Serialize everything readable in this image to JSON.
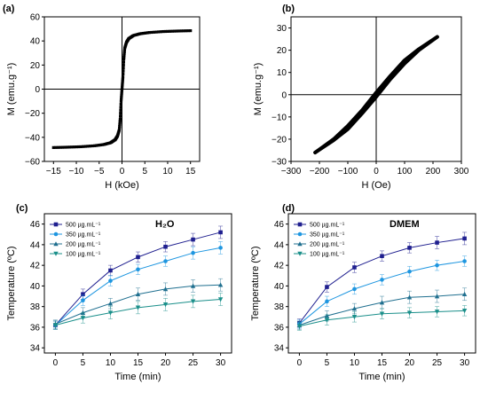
{
  "panels": {
    "a": {
      "label": "(a)"
    },
    "b": {
      "label": "(b)"
    },
    "c": {
      "label": "(c)"
    },
    "d": {
      "label": "(d)"
    }
  },
  "colors": {
    "500": "#1f1f8f",
    "350": "#1e96e0",
    "200": "#1f6f8f",
    "100": "#1a8f8a"
  },
  "chart_data": [
    {
      "id": "a",
      "type": "line",
      "xlabel": "H (kOe)",
      "ylabel": "M (emu.g⁻¹)",
      "xlim": [
        -17,
        17
      ],
      "ylim": [
        -60,
        60
      ],
      "xticks": [
        -15,
        -10,
        -5,
        0,
        5,
        10,
        15
      ],
      "yticks": [
        -60,
        -40,
        -20,
        0,
        20,
        40,
        60
      ],
      "series": [
        {
          "x": [
            -15,
            -12,
            -9,
            -6,
            -4,
            -2.5,
            -1.5,
            -1,
            -0.6,
            -0.4,
            -0.2,
            0,
            0.2,
            0.4,
            0.6,
            1,
            1.5,
            2.5,
            4,
            6,
            9,
            12,
            15
          ],
          "y": [
            -48.5,
            -48.2,
            -47.8,
            -47,
            -46,
            -44.5,
            -42,
            -39,
            -34,
            -25,
            -10,
            0,
            10,
            25,
            34,
            39,
            42,
            44.5,
            46,
            47,
            47.8,
            48.2,
            48.5
          ]
        }
      ]
    },
    {
      "id": "b",
      "type": "line",
      "xlabel": "H (Oe)",
      "ylabel": "M (emu.g⁻¹)",
      "xlim": [
        -300,
        300
      ],
      "ylim": [
        -30,
        35
      ],
      "xticks": [
        -300,
        -200,
        -100,
        0,
        100,
        200,
        300
      ],
      "yticks": [
        -30,
        -20,
        -10,
        0,
        10,
        20,
        30
      ],
      "series": [
        {
          "name": "",
          "x": [
            -215,
            -150,
            -100,
            -50,
            0,
            50,
            100,
            150,
            215
          ],
          "y": [
            -26,
            -20.5,
            -15.5,
            -8.5,
            -1,
            7,
            14,
            20,
            26
          ]
        },
        {
          "name": "",
          "x": [
            -215,
            -150,
            -100,
            -50,
            0,
            50,
            100,
            150,
            215
          ],
          "y": [
            -26,
            -20,
            -14,
            -7,
            1,
            8.5,
            15.5,
            20.5,
            26
          ]
        }
      ]
    },
    {
      "id": "c",
      "type": "line",
      "title": "H₂O",
      "xlabel": "Time (min)",
      "ylabel": "Temperature (ºC)",
      "xlim": [
        -2,
        32
      ],
      "ylim": [
        33.5,
        47
      ],
      "xticks": [
        0,
        5,
        10,
        15,
        20,
        25,
        30
      ],
      "yticks": [
        34,
        36,
        38,
        40,
        42,
        44,
        46
      ],
      "x": [
        0,
        5,
        10,
        15,
        20,
        25,
        30
      ],
      "series": [
        {
          "name": "500 µg.mL⁻¹",
          "key": "500",
          "values": [
            36.2,
            39.2,
            41.5,
            42.8,
            43.8,
            44.5,
            45.2
          ],
          "err": [
            0.4,
            0.5,
            0.5,
            0.5,
            0.5,
            0.6,
            0.6
          ]
        },
        {
          "name": "350 µg.mL⁻¹",
          "key": "350",
          "values": [
            36.2,
            38.6,
            40.5,
            41.6,
            42.4,
            43.2,
            43.7
          ],
          "err": [
            0.4,
            0.5,
            0.5,
            0.5,
            0.5,
            0.6,
            0.6
          ]
        },
        {
          "name": "200 µg.mL⁻¹",
          "key": "200",
          "values": [
            36.3,
            37.4,
            38.3,
            39.2,
            39.7,
            40.0,
            40.1
          ],
          "err": [
            0.4,
            0.5,
            0.5,
            0.6,
            0.6,
            0.6,
            0.6
          ]
        },
        {
          "name": "100 µg.mL⁻¹",
          "key": "100",
          "values": [
            36.2,
            36.9,
            37.4,
            37.9,
            38.2,
            38.5,
            38.7
          ],
          "err": [
            0.4,
            0.5,
            0.6,
            0.6,
            0.6,
            0.6,
            0.6
          ]
        }
      ]
    },
    {
      "id": "d",
      "type": "line",
      "title": "DMEM",
      "xlabel": "Time (min)",
      "ylabel": "Temperature (ºC)",
      "xlim": [
        -2,
        32
      ],
      "ylim": [
        33.5,
        47
      ],
      "xticks": [
        0,
        5,
        10,
        15,
        20,
        25,
        30
      ],
      "yticks": [
        34,
        36,
        38,
        40,
        42,
        44,
        46
      ],
      "x": [
        0,
        5,
        10,
        15,
        20,
        25,
        30
      ],
      "series": [
        {
          "name": "500 µg.mL⁻¹",
          "key": "500",
          "values": [
            36.4,
            39.9,
            41.8,
            42.9,
            43.7,
            44.2,
            44.6
          ],
          "err": [
            0.4,
            0.5,
            0.5,
            0.5,
            0.5,
            0.6,
            0.6
          ]
        },
        {
          "name": "350 µg.mL⁻¹",
          "key": "350",
          "values": [
            36.3,
            38.5,
            39.7,
            40.6,
            41.4,
            42.0,
            42.4
          ],
          "err": [
            0.4,
            0.5,
            0.5,
            0.5,
            0.5,
            0.5,
            0.5
          ]
        },
        {
          "name": "200 µg.mL⁻¹",
          "key": "200",
          "values": [
            36.2,
            37.1,
            37.8,
            38.4,
            38.9,
            39.0,
            39.2
          ],
          "err": [
            0.4,
            0.5,
            0.5,
            0.6,
            0.6,
            0.6,
            0.6
          ]
        },
        {
          "name": "100 µg.mL⁻¹",
          "key": "100",
          "values": [
            36.1,
            36.7,
            37.0,
            37.3,
            37.4,
            37.5,
            37.6
          ],
          "err": [
            0.4,
            0.5,
            0.5,
            0.5,
            0.5,
            0.5,
            0.5
          ]
        }
      ]
    }
  ]
}
